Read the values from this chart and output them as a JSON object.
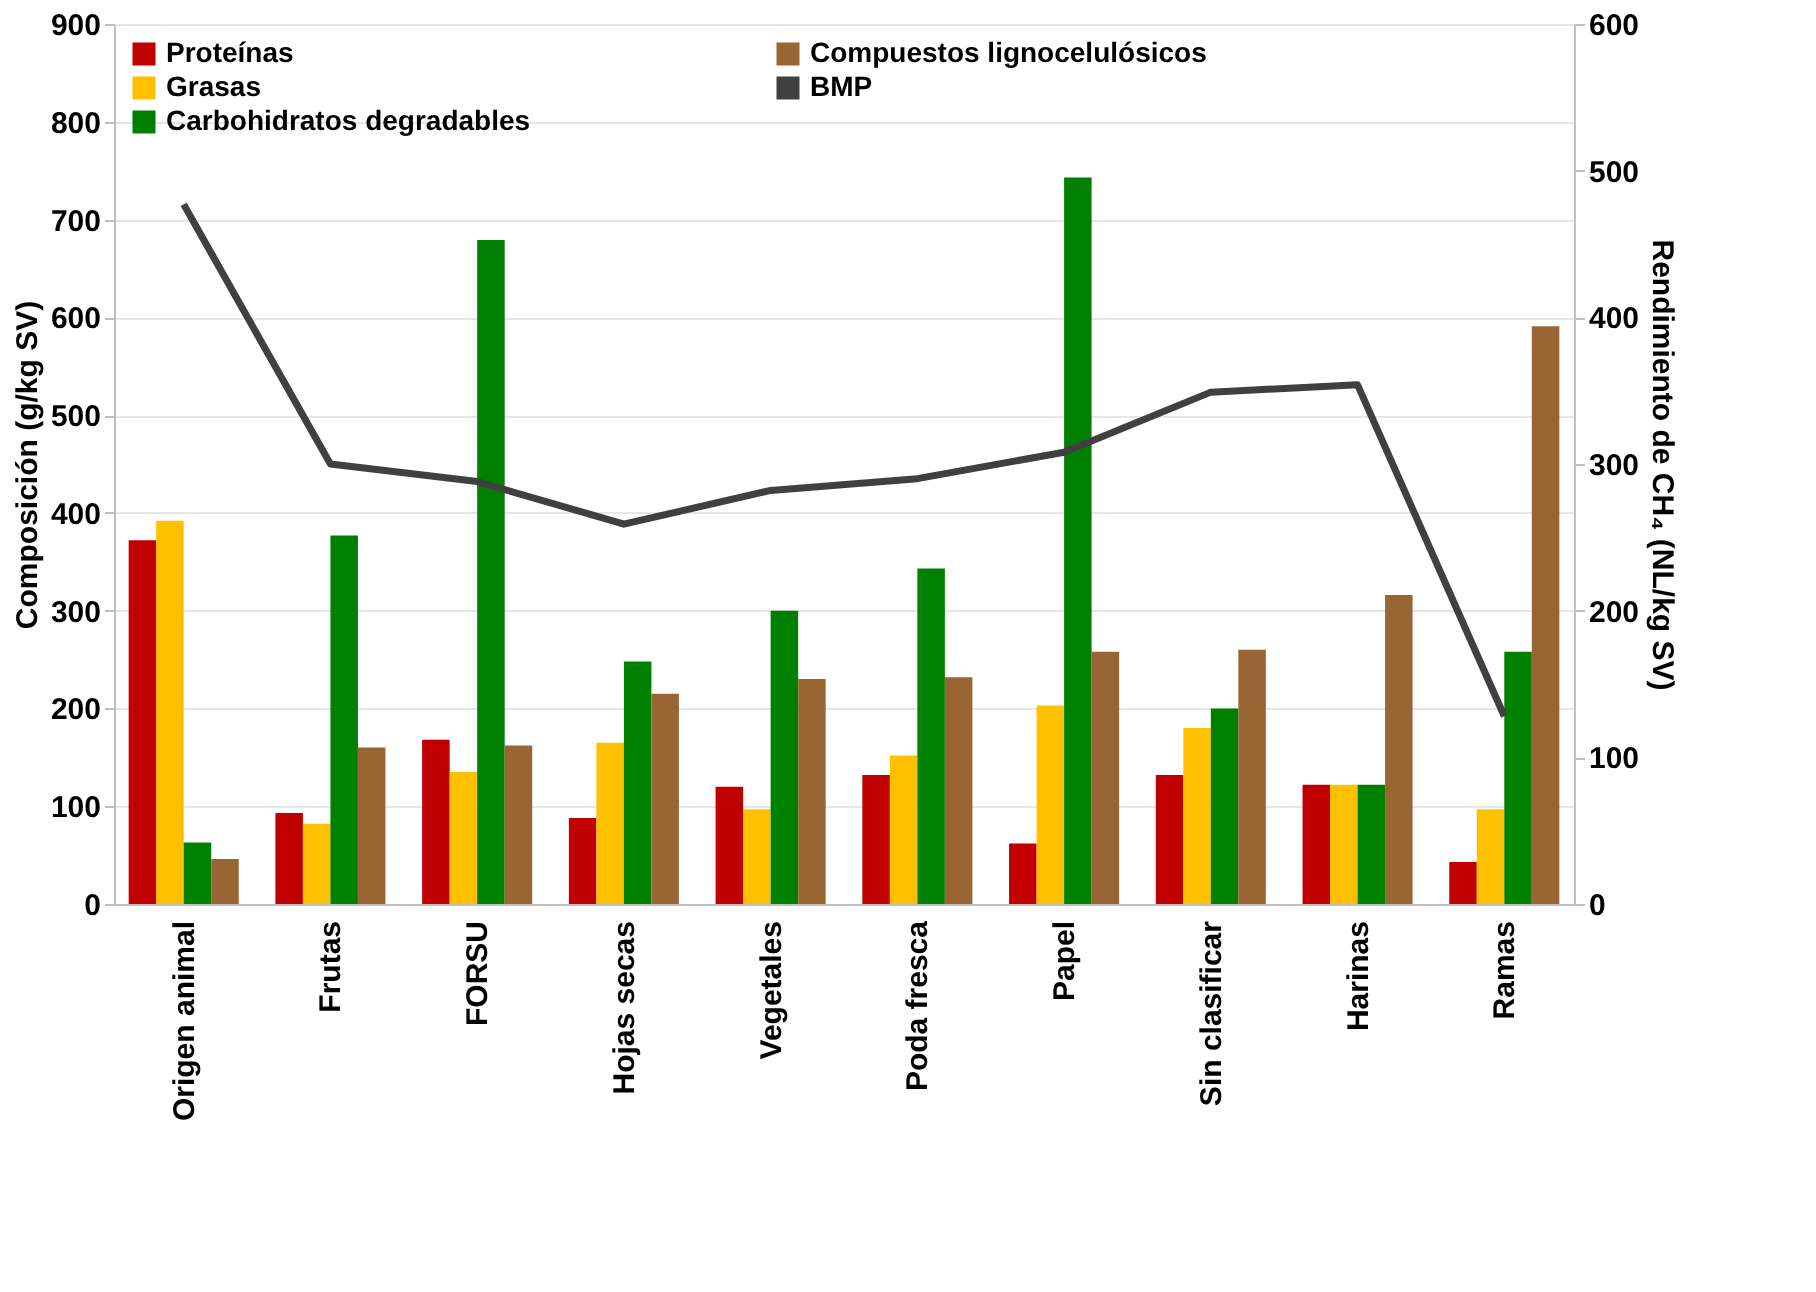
{
  "chart_data": {
    "type": "bar",
    "ylabel": "Composición (g/kg SV)",
    "y2label": "Rendimiento de CH₄ (NL/kg SV)",
    "categories": [
      "Origen animal",
      "Frutas",
      "FORSU",
      "Hojas secas",
      "Vegetales",
      "Poda fresca",
      "Papel",
      "Sin clasificar",
      "Harinas",
      "Ramas"
    ],
    "series": [
      {
        "name": "Proteínas",
        "color": "#c00000",
        "values": [
          372,
          93,
          168,
          88,
          120,
          132,
          62,
          132,
          122,
          43
        ]
      },
      {
        "name": "Grasas",
        "color": "#ffc000",
        "values": [
          392,
          82,
          135,
          165,
          97,
          152,
          203,
          180,
          122,
          97
        ]
      },
      {
        "name": "Carbohidratos degradables",
        "color": "#008000",
        "values": [
          63,
          377,
          679,
          248,
          300,
          343,
          743,
          200,
          122,
          258
        ]
      },
      {
        "name": "Compuestos lignocelulósicos",
        "color": "#996633",
        "values": [
          46,
          160,
          162,
          215,
          230,
          232,
          258,
          260,
          316,
          591
        ]
      },
      {
        "name": "BMP",
        "color": "#404040",
        "type": "line",
        "axis": "y2",
        "values": [
          477,
          300,
          288,
          259,
          282,
          290,
          308,
          349,
          354,
          128
        ]
      }
    ],
    "ylim": [
      0,
      900
    ],
    "yticks": [
      0,
      100,
      200,
      300,
      400,
      500,
      600,
      700,
      800,
      900
    ],
    "y2lim": [
      0,
      600
    ],
    "y2ticks": [
      0,
      100,
      200,
      300,
      400,
      500,
      600
    ],
    "grid": "y",
    "legend": "top left"
  }
}
